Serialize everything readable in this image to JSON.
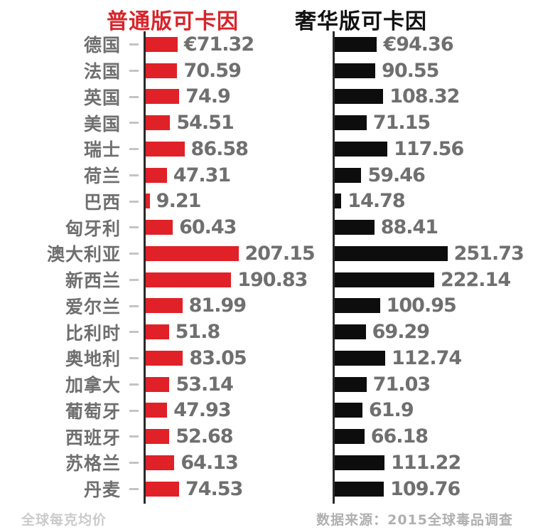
{
  "titles": {
    "regular": "普通版可卡因",
    "luxury": "奢华版可卡因"
  },
  "footer": {
    "left": "全球每克均价",
    "right": "数据来源：2015全球毒品调查"
  },
  "colors": {
    "regular_bar": "#e02128",
    "luxury_bar": "#0d0d0d",
    "title_regular": "#d8232a",
    "title_luxury": "#111111",
    "axis": "#2a2a2a",
    "label_text": "#6f6f6f",
    "value_text": "#6f6f6f",
    "tick_dash": "#c4c4c4",
    "footnote_text": "#cbcbcb",
    "source_text": "#b0b0b0"
  },
  "chart_data": {
    "type": "bar",
    "orientation": "horizontal",
    "title_left": "普通版可卡因",
    "title_right": "奢华版可卡因",
    "footnote": "全球每克均价",
    "source": "数据来源：2015全球毒品调查",
    "currency": "EUR",
    "xlim": [
      0,
      260
    ],
    "grid": false,
    "legend_position": "top-as-column-titles",
    "categories": [
      "德国",
      "法国",
      "英国",
      "美国",
      "瑞士",
      "荷兰",
      "巴西",
      "匈牙利",
      "澳大利亚",
      "新西兰",
      "爱尔兰",
      "比利时",
      "奥地利",
      "加拿大",
      "葡萄牙",
      "西班牙",
      "苏格兰",
      "丹麦"
    ],
    "series": [
      {
        "name": "普通版可卡因",
        "color": "#e02128",
        "values": [
          71.32,
          70.59,
          74.9,
          54.51,
          86.58,
          47.31,
          9.21,
          60.43,
          207.15,
          190.83,
          81.99,
          51.8,
          83.05,
          53.14,
          47.93,
          52.68,
          64.13,
          74.53
        ],
        "labels": [
          "€71.32",
          "70.59",
          "74.9",
          "54.51",
          "86.58",
          "47.31",
          "9.21",
          "60.43",
          "207.15",
          "190.83",
          "81.99",
          "51.8",
          "83.05",
          "53.14",
          "47.93",
          "52.68",
          "64.13",
          "74.53"
        ]
      },
      {
        "name": "奢华版可卡因",
        "color": "#0d0d0d",
        "values": [
          94.36,
          90.55,
          108.32,
          71.15,
          117.56,
          59.46,
          14.78,
          88.41,
          251.73,
          222.14,
          100.95,
          69.29,
          112.74,
          71.03,
          61.9,
          66.18,
          111.22,
          109.76
        ],
        "labels": [
          "€94.36",
          "90.55",
          "108.32",
          "71.15",
          "117.56",
          "59.46",
          "14.78",
          "88.41",
          "251.73",
          "222.14",
          "100.95",
          "69.29",
          "112.74",
          "71.03",
          "61.9",
          "66.18",
          "111.22",
          "109.76"
        ]
      }
    ]
  }
}
